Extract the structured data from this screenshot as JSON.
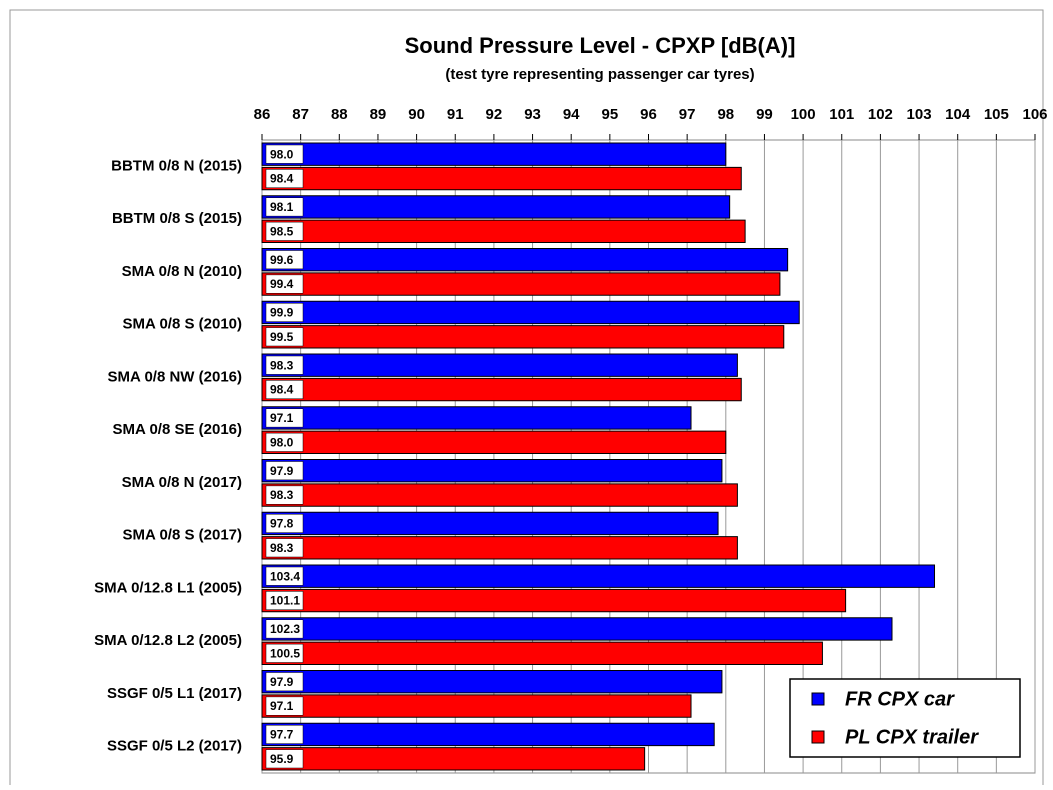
{
  "chart_data": {
    "type": "bar",
    "orientation": "horizontal",
    "title": "Sound Pressure Level - CPXP  [dB(A)]",
    "subtitle": "(test tyre representing passenger car tyres)",
    "categories": [
      "BBTM 0/8 N (2015)",
      "BBTM 0/8 S (2015)",
      "SMA 0/8 N (2010)",
      "SMA 0/8 S (2010)",
      "SMA 0/8 NW (2016)",
      "SMA 0/8 SE (2016)",
      "SMA 0/8 N (2017)",
      "SMA 0/8 S (2017)",
      "SMA 0/12.8 L1 (2005)",
      "SMA 0/12.8 L2 (2005)",
      "SSGF 0/5 L1 (2017)",
      "SSGF 0/5 L2 (2017)"
    ],
    "series": [
      {
        "name": "FR CPX car",
        "color": "#0000ff",
        "values": [
          98.0,
          98.1,
          99.6,
          99.9,
          98.3,
          97.1,
          97.9,
          97.8,
          103.4,
          102.3,
          97.9,
          97.7
        ],
        "value_labels": [
          "98.0",
          "98.1",
          "99.6",
          "99.9",
          "98.3",
          "97.1",
          "97.9",
          "97.8",
          "103.4",
          "102.3",
          "97.9",
          "97.7"
        ]
      },
      {
        "name": "PL CPX trailer",
        "color": "#ff0000",
        "values": [
          98.4,
          98.5,
          99.4,
          99.5,
          98.4,
          98.0,
          98.3,
          98.3,
          101.1,
          100.5,
          97.1,
          95.9
        ],
        "value_labels": [
          "98.4",
          "98.5",
          "99.4",
          "99.5",
          "98.4",
          "98.0",
          "98.3",
          "98.3",
          "101.1",
          "100.5",
          "97.1",
          "95.9"
        ]
      }
    ],
    "xlim": [
      86,
      106
    ],
    "xticks": [
      86,
      87,
      88,
      89,
      90,
      91,
      92,
      93,
      94,
      95,
      96,
      97,
      98,
      99,
      100,
      101,
      102,
      103,
      104,
      105,
      106
    ],
    "grid": true,
    "legend": "lower right"
  }
}
